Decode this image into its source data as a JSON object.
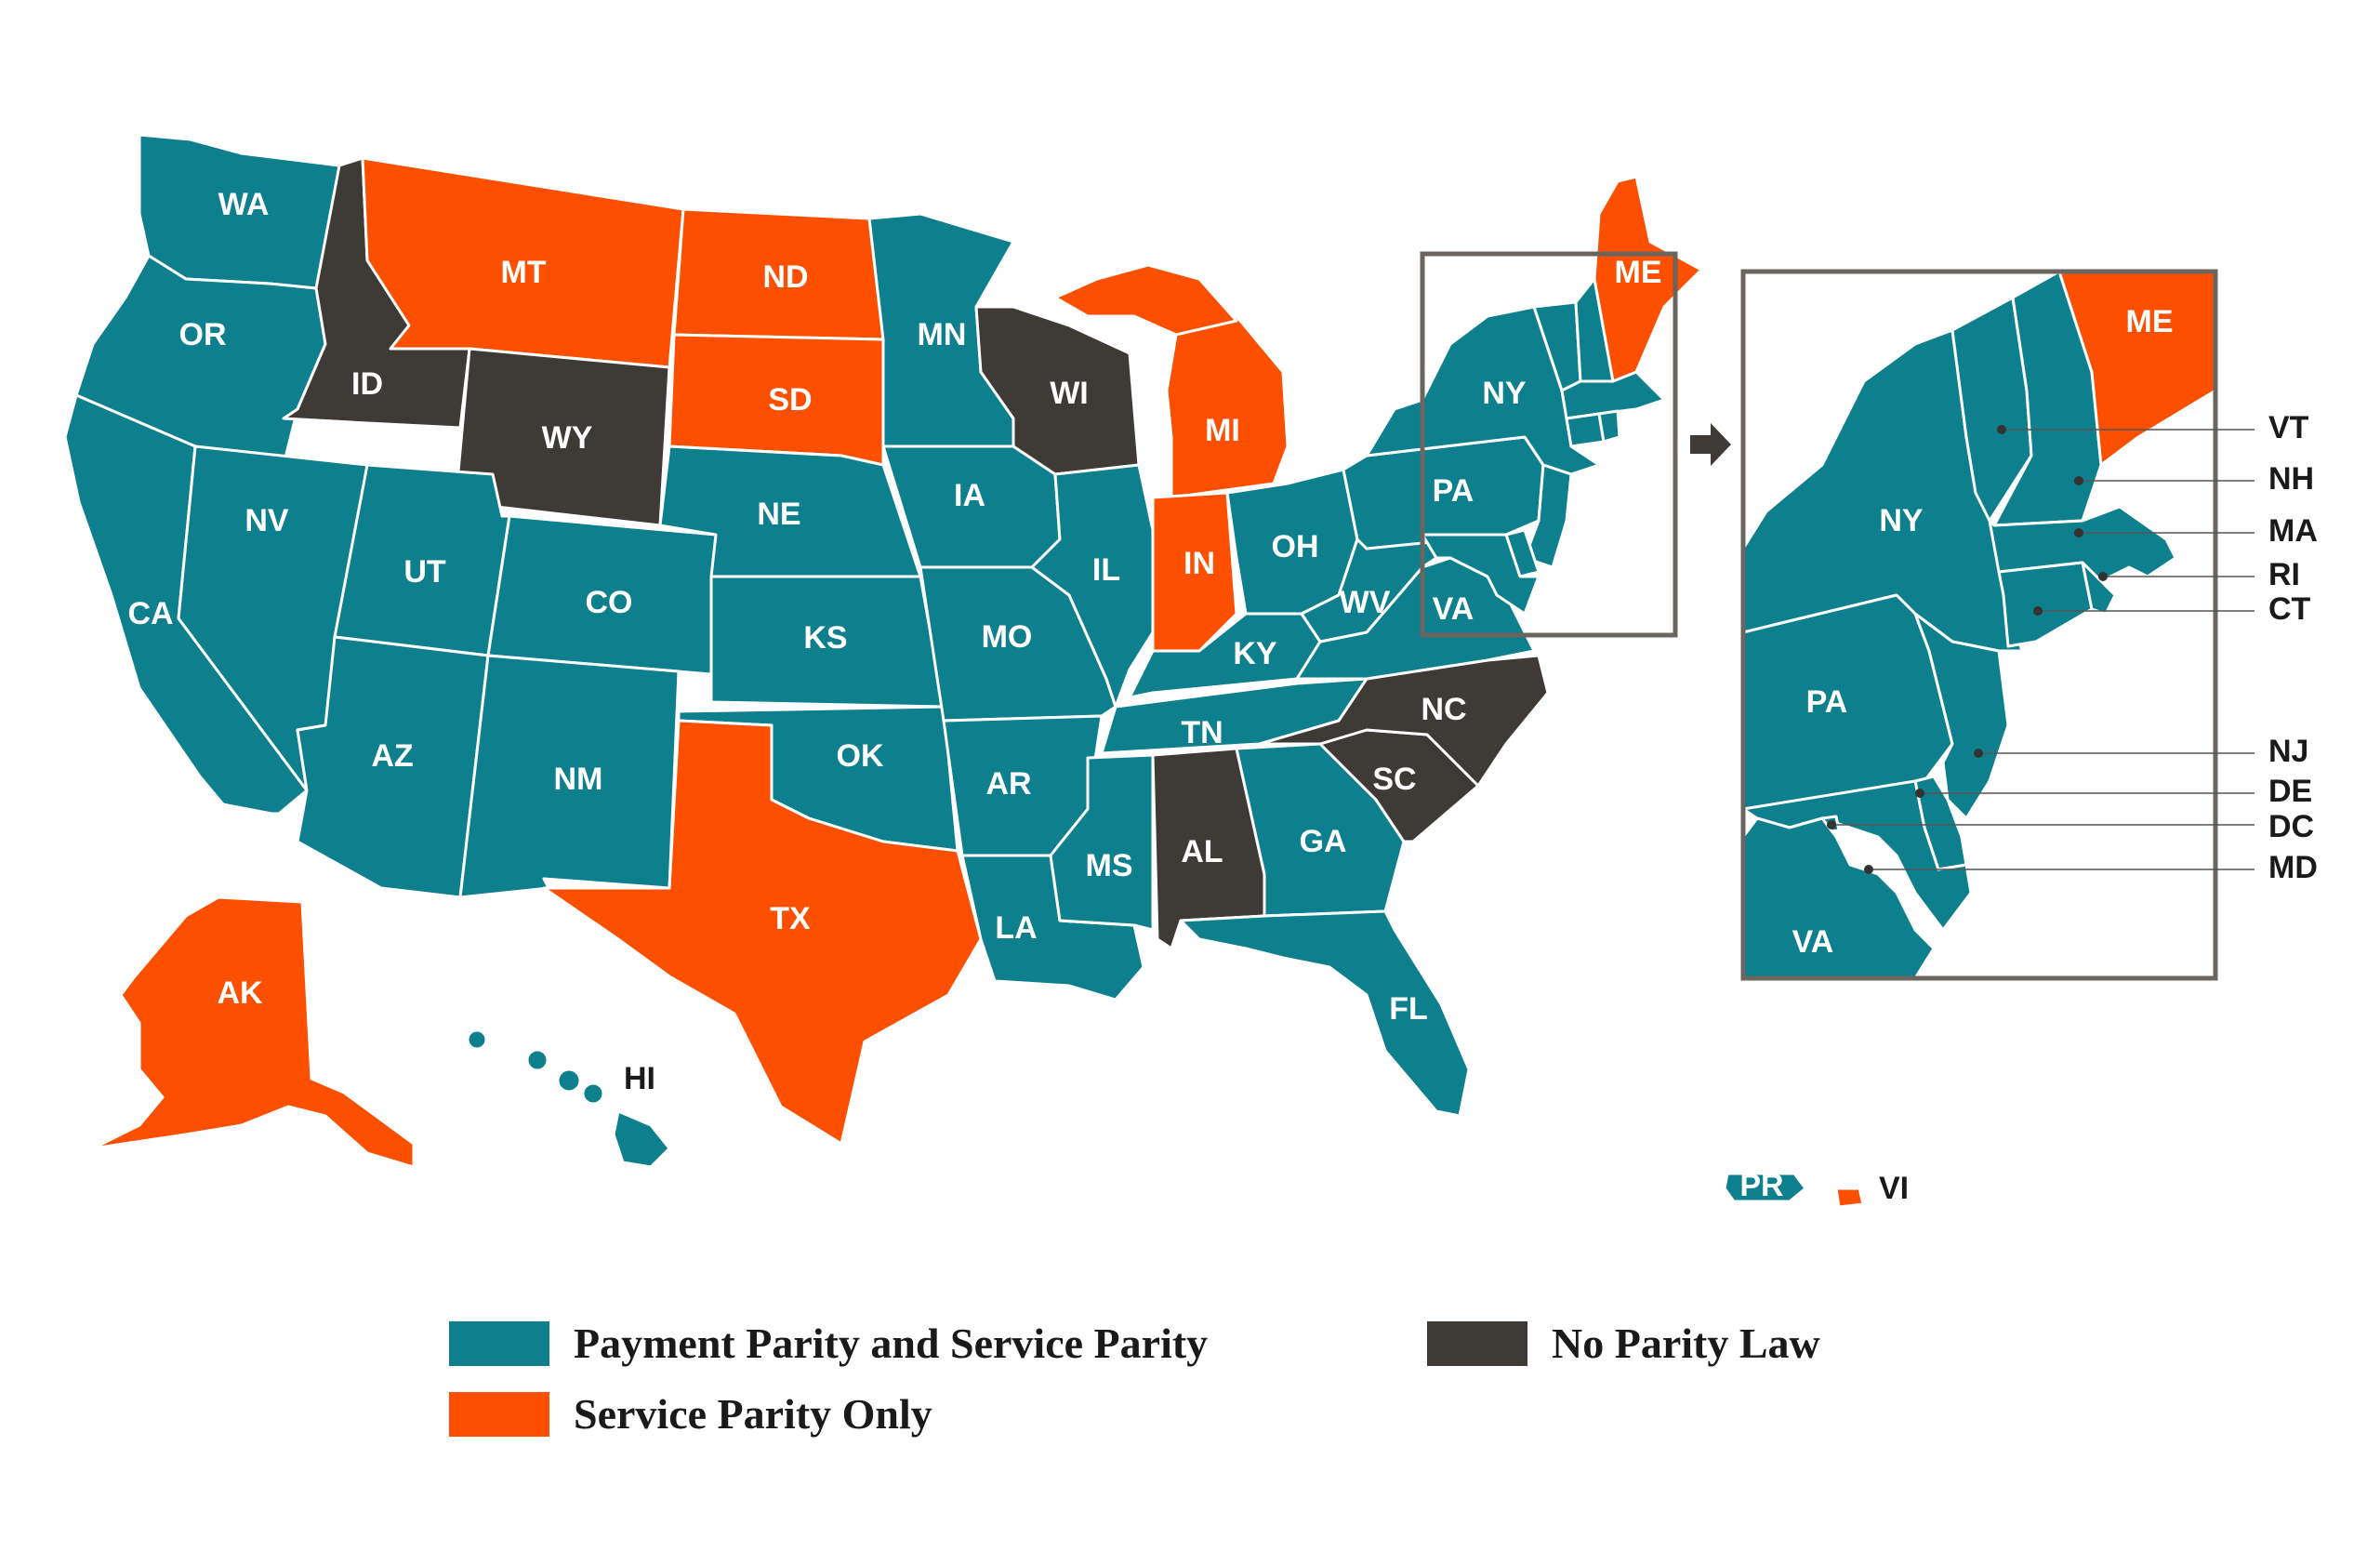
{
  "colors": {
    "parity_both": "#0e7f8c",
    "service_only": "#fc4f00",
    "none": "#3e3a36",
    "border": "#ffffff",
    "frame": "#6b6560"
  },
  "legend": [
    {
      "key": "parity_both",
      "label": "Payment Parity and Service Parity"
    },
    {
      "key": "service_only",
      "label": "Service Parity Only"
    },
    {
      "key": "none",
      "label": "No Parity Law"
    }
  ],
  "states": {
    "WA": "parity_both",
    "OR": "parity_both",
    "CA": "parity_both",
    "NV": "parity_both",
    "ID": "none",
    "MT": "service_only",
    "WY": "none",
    "UT": "parity_both",
    "AZ": "parity_both",
    "CO": "parity_both",
    "NM": "parity_both",
    "ND": "service_only",
    "SD": "service_only",
    "NE": "parity_both",
    "KS": "parity_both",
    "OK": "parity_both",
    "TX": "service_only",
    "MN": "parity_both",
    "IA": "parity_both",
    "MO": "parity_both",
    "AR": "parity_both",
    "LA": "parity_both",
    "WI": "none",
    "IL": "parity_both",
    "MI": "service_only",
    "IN": "service_only",
    "OH": "parity_both",
    "KY": "parity_both",
    "TN": "parity_both",
    "MS": "parity_both",
    "AL": "none",
    "GA": "parity_both",
    "FL": "parity_both",
    "SC": "none",
    "NC": "none",
    "VA": "parity_both",
    "WV": "parity_both",
    "PA": "parity_both",
    "NY": "parity_both",
    "ME": "service_only",
    "VT": "parity_both",
    "NH": "parity_both",
    "MA": "parity_both",
    "RI": "parity_both",
    "CT": "parity_both",
    "NJ": "parity_both",
    "DE": "parity_both",
    "DC": "parity_both",
    "MD": "parity_both",
    "AK": "service_only",
    "HI": "parity_both",
    "PR": "parity_both",
    "VI": "service_only"
  },
  "inset_side_labels": [
    "VT",
    "NH",
    "MA",
    "RI",
    "CT",
    "NJ",
    "DE",
    "DC",
    "MD"
  ]
}
